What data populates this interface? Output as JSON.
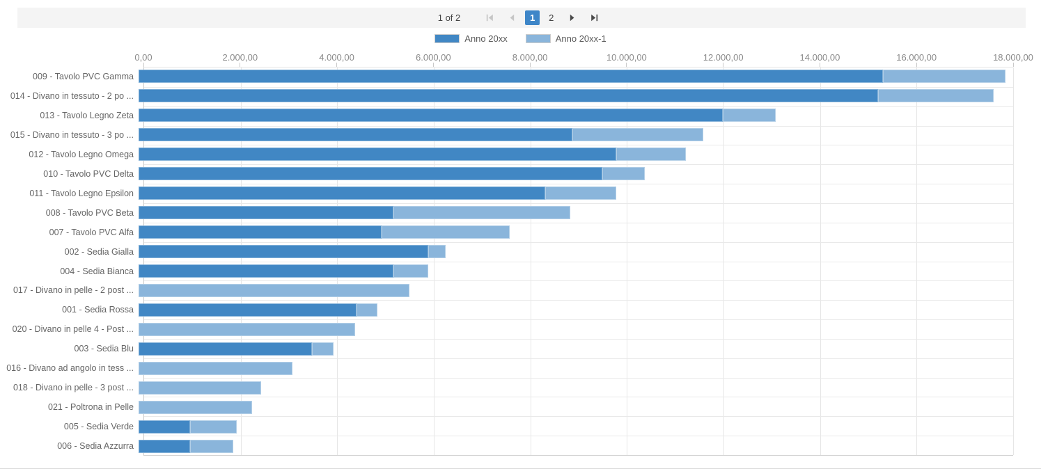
{
  "pager": {
    "status": "1 of 2",
    "pages": [
      {
        "label": "1",
        "selected": true
      },
      {
        "label": "2",
        "selected": false
      }
    ],
    "icons": {
      "first": "seek-to-first-page",
      "previous": "previous-page",
      "next": "next-page",
      "last": "seek-to-last-page"
    },
    "selected_page_color": "#3e86c8"
  },
  "chart_data": {
    "type": "bar",
    "orientation": "horizontal",
    "stacked": true,
    "title": "",
    "legend_position": "top",
    "grid": true,
    "categories": [
      "009 - Tavolo PVC Gamma",
      "014 - Divano in tessuto - 2 po ...",
      "013 - Tavolo Legno Zeta",
      "015 - Divano in tessuto - 3 po ...",
      "012 - Tavolo Legno Omega",
      "010 - Tavolo PVC Delta",
      "011 - Tavolo Legno Epsilon",
      "008 - Tavolo PVC Beta",
      "007 - Tavolo PVC Alfa",
      "002 - Sedia Gialla",
      "004 - Sedia Bianca",
      "017 - Divano in pelle - 2 post ...",
      "001 - Sedia Rossa",
      "020 - Divano in pelle 4 - Post ...",
      "003 - Sedia Blu",
      "016 - Divano ad angolo in tess ...",
      "018 - Divano in pelle - 3 post ...",
      "021 - Poltrona in Pelle",
      "005 - Sedia Verde",
      "006 - Sedia Azzurra"
    ],
    "series": [
      {
        "name": "Anno 20xx",
        "color": "#4187c4",
        "values": [
          15400,
          15300,
          12090,
          8980,
          9890,
          9600,
          8420,
          5270,
          5030,
          6000,
          5270,
          0,
          4510,
          0,
          3590,
          0,
          0,
          0,
          1070,
          1070
        ]
      },
      {
        "name": "Anno 20xx-1",
        "color": "#8ab5db",
        "values": [
          2540,
          2400,
          1100,
          2710,
          1440,
          880,
          1470,
          3660,
          2650,
          360,
          720,
          5610,
          430,
          4480,
          450,
          3190,
          2540,
          2350,
          965,
          895
        ]
      }
    ],
    "x_axis": {
      "min": 0,
      "max": 18000,
      "step": 2000,
      "tick_labels": [
        "0,00",
        "2.000,00",
        "4.000,00",
        "6.000,00",
        "8.000,00",
        "10.000,00",
        "12.000,00",
        "14.000,00",
        "16.000,00",
        "18.000,00"
      ]
    }
  }
}
